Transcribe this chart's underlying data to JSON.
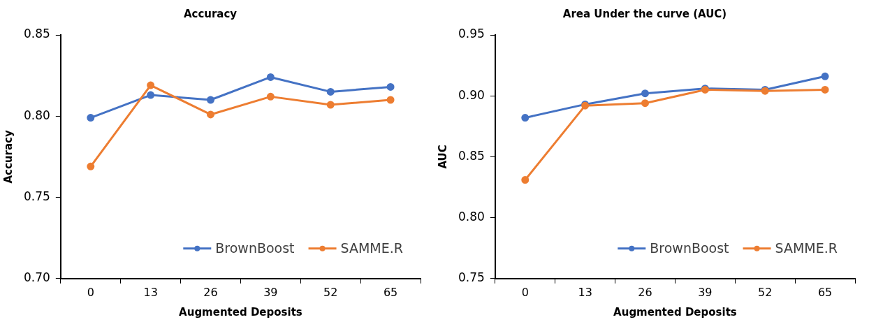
{
  "chart_data": [
    {
      "type": "line",
      "title": "Accuracy",
      "xlabel": "Augmented Deposits",
      "ylabel": "Accuracy",
      "categories": [
        "0",
        "13",
        "26",
        "39",
        "52",
        "65"
      ],
      "series": [
        {
          "name": "BrownBoost",
          "color": "#4472c4",
          "values": [
            0.799,
            0.813,
            0.81,
            0.824,
            0.815,
            0.818
          ]
        },
        {
          "name": "SAMME.R",
          "color": "#ed7d31",
          "values": [
            0.769,
            0.819,
            0.801,
            0.812,
            0.807,
            0.81
          ]
        }
      ],
      "ylim": [
        0.7,
        0.85
      ],
      "yticks": [
        {
          "value": 0.7,
          "label": "0.70"
        },
        {
          "value": 0.75,
          "label": "0.75"
        },
        {
          "value": 0.8,
          "label": "0.80"
        },
        {
          "value": 0.85,
          "label": "0.85"
        }
      ],
      "grid": false,
      "legend": "bottom right",
      "marker": "circle",
      "line_style": "solid"
    },
    {
      "type": "line",
      "title": "Area Under the curve (AUC)",
      "xlabel": "Augmented Deposits",
      "ylabel": "AUC",
      "categories": [
        "0",
        "13",
        "26",
        "39",
        "52",
        "65"
      ],
      "series": [
        {
          "name": "BrownBoost",
          "color": "#4472c4",
          "values": [
            0.882,
            0.893,
            0.902,
            0.906,
            0.905,
            0.916
          ]
        },
        {
          "name": "SAMME.R",
          "color": "#ed7d31",
          "values": [
            0.831,
            0.892,
            0.894,
            0.905,
            0.904,
            0.905
          ]
        }
      ],
      "ylim": [
        0.75,
        0.95
      ],
      "yticks": [
        {
          "value": 0.75,
          "label": "0.75"
        },
        {
          "value": 0.8,
          "label": "0.80"
        },
        {
          "value": 0.85,
          "label": "0.85"
        },
        {
          "value": 0.9,
          "label": "0.90"
        },
        {
          "value": 0.95,
          "label": "0.95"
        }
      ],
      "grid": false,
      "legend": "bottom right",
      "marker": "circle",
      "line_style": "solid"
    }
  ]
}
